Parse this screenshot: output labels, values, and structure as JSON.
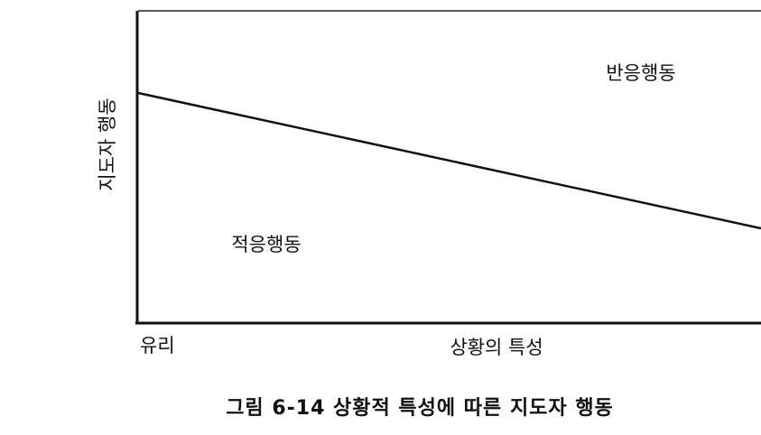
{
  "diagram": {
    "y_axis_label": "지도자 행동",
    "upper_region_label": "반응행동",
    "lower_region_label": "적응행동",
    "x_axis_start_label": "유리",
    "x_axis_label": "상황의 특성"
  },
  "caption": "그림 6-14 상황적 특성에 따른 지도자 행동"
}
